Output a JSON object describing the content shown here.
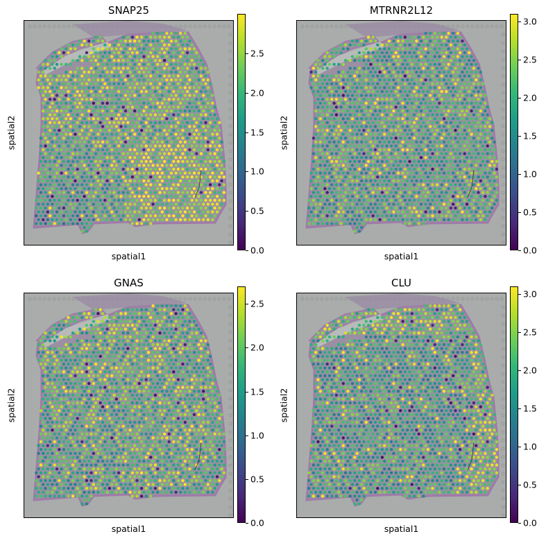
{
  "chart_data": [
    {
      "type": "scatter",
      "title": "SNAP25",
      "xlabel": "spatial1",
      "ylabel": "spatial2",
      "colormap": "viridis",
      "vmin": 0,
      "vmax": 3.0,
      "colorbar_ticks": [
        "0.0",
        "0.5",
        "1.0",
        "1.5",
        "2.0",
        "2.5"
      ],
      "pattern": "low-lower-left"
    },
    {
      "type": "scatter",
      "title": "MTRNR2L12",
      "xlabel": "spatial1",
      "ylabel": "spatial2",
      "colormap": "viridis",
      "vmin": 0,
      "vmax": 3.1,
      "colorbar_ticks": [
        "0.0",
        "0.5",
        "1.0",
        "1.5",
        "2.0",
        "2.5",
        "3.0"
      ],
      "pattern": "uniform"
    },
    {
      "type": "scatter",
      "title": "GNAS",
      "xlabel": "spatial1",
      "ylabel": "spatial2",
      "colormap": "viridis",
      "vmin": 0,
      "vmax": 2.7,
      "colorbar_ticks": [
        "0.0",
        "0.5",
        "1.0",
        "1.5",
        "2.0",
        "2.5"
      ],
      "pattern": "low-lower-left-mild"
    },
    {
      "type": "scatter",
      "title": "CLU",
      "xlabel": "spatial1",
      "ylabel": "spatial2",
      "colormap": "viridis",
      "vmin": 0,
      "vmax": 3.1,
      "colorbar_ticks": [
        "0.0",
        "0.5",
        "1.0",
        "1.5",
        "2.0",
        "2.5",
        "3.0"
      ],
      "pattern": "high-edges"
    }
  ]
}
